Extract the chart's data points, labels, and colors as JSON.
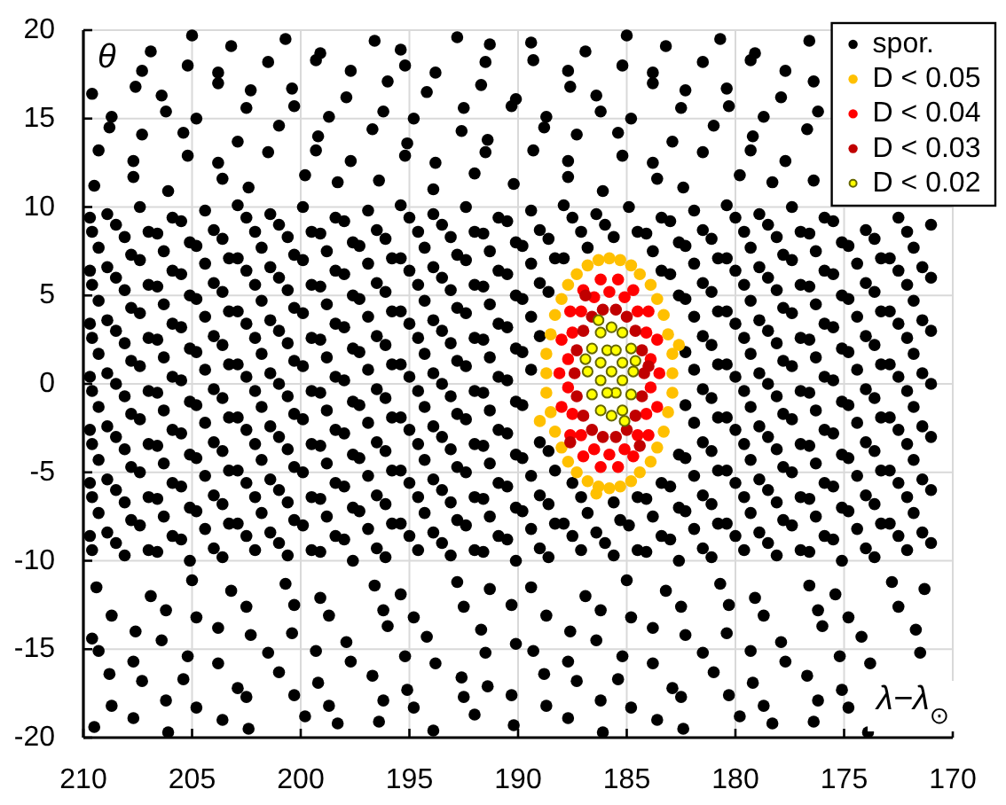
{
  "chart_data": {
    "type": "scatter",
    "xlabel": "λ−λ$_{⊙}$",
    "ylabel": "θ",
    "xlim": [
      210,
      170
    ],
    "ylim": [
      -20,
      20
    ],
    "xticks": [
      210,
      205,
      200,
      195,
      190,
      185,
      180,
      175,
      170
    ],
    "yticks": [
      -20,
      -15,
      -10,
      -5,
      0,
      5,
      10,
      15,
      20
    ],
    "grid": true,
    "legend": "top right",
    "marker": "circle",
    "series": [
      {
        "name": "spor.",
        "color": "#000000",
        "x": [
          176.6,
          179.1,
          180.7,
          183.2,
          185.0,
          186.9,
          189.4,
          191.3,
          192.8,
          195.4,
          196.6,
          199.1,
          200.7,
          203.2,
          205.0,
          206.9,
          176.4,
          177.9,
          180.4,
          182.3,
          183.8,
          186.4,
          187.6,
          190.1,
          191.7,
          194.2,
          196.0,
          197.9,
          200.4,
          202.3,
          203.8,
          206.4,
          207.6,
          209.6,
          176.7,
          179.2,
          181.0,
          182.9,
          185.4,
          187.3,
          188.8,
          191.4,
          192.6,
          195.1,
          196.7,
          199.2,
          201.0,
          202.9,
          205.4,
          207.3,
          208.8,
          176.4,
          178.3,
          179.8,
          182.4,
          183.6,
          186.1,
          187.7,
          190.2,
          192.0,
          193.9,
          196.4,
          198.3,
          199.8,
          202.4,
          203.6,
          206.1,
          207.7,
          209.5,
          171.0,
          172.5,
          174.0,
          175.5,
          177.0,
          178.5,
          180.0,
          181.5,
          183.0,
          184.5,
          186.0,
          187.5,
          189.0,
          190.5,
          192.0,
          193.5,
          195.0,
          196.5,
          198.0,
          199.5,
          201.0,
          202.5,
          204.0,
          205.5,
          207.0,
          208.5,
          209.7,
          171.8,
          173.3,
          174.8,
          176.3,
          177.8,
          179.3,
          180.8,
          182.3,
          183.8,
          186.8,
          188.3,
          189.8,
          191.3,
          192.8,
          194.3,
          195.8,
          197.3,
          198.8,
          200.3,
          201.8,
          203.3,
          204.8,
          206.3,
          207.8,
          209.3,
          171.0,
          172.5,
          174.0,
          175.5,
          177.0,
          178.5,
          180.0,
          181.5,
          183.0,
          189.0,
          190.5,
          192.0,
          193.5,
          195.0,
          196.5,
          198.0,
          199.5,
          201.0,
          202.5,
          204.0,
          205.5,
          207.0,
          208.5,
          209.7,
          171.8,
          173.3,
          174.8,
          176.3,
          177.8,
          179.3,
          180.8,
          182.3,
          189.8,
          191.3,
          192.8,
          194.3,
          195.8,
          197.3,
          198.8,
          200.3,
          201.8,
          203.3,
          204.8,
          206.3,
          207.8,
          209.3,
          171.0,
          172.5,
          174.0,
          175.5,
          177.0,
          178.5,
          180.0,
          181.5,
          189.0,
          190.5,
          192.0,
          193.5,
          195.0,
          196.5,
          198.0,
          199.5,
          201.0,
          202.5,
          204.0,
          205.5,
          207.0,
          208.5,
          209.7,
          171.8,
          173.3,
          174.8,
          176.3,
          177.8,
          179.3,
          180.8,
          182.3,
          189.8,
          191.3,
          192.8,
          194.3,
          195.8,
          197.3,
          198.8,
          200.3,
          201.8,
          203.3,
          204.8,
          206.3,
          207.8,
          209.3,
          171.0,
          172.5,
          174.0,
          175.5,
          177.0,
          178.5,
          180.0,
          181.5,
          190.5,
          192.0,
          193.5,
          195.0,
          196.5,
          198.0,
          199.5,
          201.0,
          202.5,
          204.0,
          205.5,
          207.0,
          208.5,
          209.7,
          171.8,
          173.3,
          174.8,
          176.3,
          177.8,
          179.3,
          180.8,
          182.3,
          189.8,
          191.3,
          192.8,
          194.3,
          195.8,
          197.3,
          198.8,
          200.3,
          201.8,
          203.3,
          204.8,
          206.3,
          207.8,
          209.3,
          171.0,
          172.5,
          174.0,
          175.5,
          177.0,
          178.5,
          180.0,
          181.5,
          189.0,
          190.5,
          192.0,
          193.5,
          195.0,
          196.5,
          198.0,
          199.5,
          201.0,
          202.5,
          204.0,
          205.5,
          207.0,
          208.5,
          209.7,
          171.8,
          173.3,
          174.8,
          176.3,
          177.8,
          179.3,
          180.8,
          182.3,
          188.3,
          189.8,
          191.3,
          192.8,
          194.3,
          195.8,
          197.3,
          198.8,
          200.3,
          201.8,
          203.3,
          204.8,
          206.3,
          207.8,
          209.3,
          171.0,
          172.5,
          174.0,
          175.5,
          177.0,
          178.5,
          180.0,
          181.5,
          183.0,
          184.5,
          187.5,
          189.0,
          190.5,
          192.0,
          193.5,
          195.0,
          196.5,
          198.0,
          199.5,
          201.0,
          202.5,
          204.0,
          205.5,
          207.0,
          208.5,
          209.7,
          171.8,
          173.3,
          174.8,
          176.3,
          177.8,
          179.3,
          180.8,
          182.3,
          183.8,
          185.3,
          186.8,
          188.3,
          189.8,
          191.3,
          192.8,
          194.3,
          195.8,
          197.3,
          198.8,
          200.3,
          201.8,
          203.3,
          204.8,
          206.3,
          207.8,
          209.3,
          171.0,
          172.5,
          174.0,
          175.5,
          177.0,
          178.5,
          180.0,
          181.5,
          183.0,
          184.5,
          186.0,
          187.5,
          189.0,
          190.5,
          192.0,
          193.5,
          195.0,
          196.5,
          198.0,
          199.5,
          201.0,
          202.5,
          204.0,
          205.5,
          207.0,
          208.5,
          209.7,
          171.3,
          172.8,
          175.4,
          176.6,
          179.1,
          180.7,
          183.2,
          185.0,
          186.9,
          189.4,
          191.3,
          192.8,
          195.4,
          196.6,
          199.1,
          200.7,
          203.2,
          205.0,
          206.9,
          209.4,
          171.7,
          174.2,
          176.0,
          177.9,
          180.4,
          182.3,
          183.8,
          186.4,
          187.6,
          190.1,
          191.7,
          194.2,
          196.0,
          197.9,
          200.4,
          202.3,
          203.8,
          206.4,
          207.6,
          209.6,
          175.1,
          176.7,
          179.2,
          181.0,
          182.9,
          185.4,
          187.3,
          188.8,
          191.4,
          192.6,
          195.1,
          196.7,
          199.2,
          201.0,
          202.9,
          205.4,
          207.3,
          208.8,
          173.9,
          176.4,
          178.3,
          179.8,
          182.4,
          183.6,
          186.1,
          187.7,
          190.2,
          192.0,
          193.9,
          196.4,
          198.3,
          199.8,
          202.4,
          203.6,
          206.1,
          207.7,
          209.5,
          177.7,
          179.3,
          181.5,
          183.8,
          185.2,
          187.7,
          189.3,
          191.5,
          193.8,
          195.2,
          197.7,
          199.3,
          201.5,
          203.8,
          205.2,
          207.3,
          176.2,
          178.7,
          180.3,
          182.5,
          184.8,
          186.2,
          188.7,
          190.3,
          192.5,
          194.8,
          196.2,
          198.7,
          200.3,
          202.5,
          204.8,
          206.2,
          208.7,
          177.7,
          179.3,
          181.5,
          183.8,
          185.2,
          187.7,
          189.3,
          191.5,
          193.8,
          195.2,
          197.7,
          199.3,
          201.5,
          203.8,
          205.2,
          207.7,
          209.3,
          175.9,
          177.4,
          178.9,
          180.4,
          181.9,
          183.4,
          184.9,
          186.4,
          187.9,
          189.4,
          190.9,
          192.4,
          193.9,
          195.4,
          196.9,
          198.4,
          199.9,
          201.4,
          202.9,
          204.4,
          205.9,
          207.4,
          208.9,
          172.1,
          173.6,
          175.1,
          176.6,
          178.1,
          179.6,
          181.1,
          182.6,
          184.1,
          185.6,
          187.1,
          188.6,
          190.1,
          191.6,
          193.1,
          194.6,
          196.1,
          197.6,
          199.1,
          200.6,
          202.1,
          203.6,
          205.1,
          206.6,
          208.1,
          209.6,
          171.4,
          172.9,
          174.4,
          175.9,
          177.4,
          178.9,
          180.4,
          181.9,
          183.4,
          187.9,
          189.4,
          190.9,
          192.4,
          193.9,
          195.4,
          196.9,
          198.4,
          199.9,
          201.4,
          202.9,
          204.4,
          205.9,
          207.4,
          208.9,
          172.1,
          173.6,
          175.1,
          176.6,
          178.1,
          179.6,
          181.1,
          182.6,
          188.6,
          190.1,
          191.6,
          193.1,
          194.6,
          196.1,
          197.6,
          199.1,
          200.6,
          202.1,
          203.6,
          205.1,
          206.6,
          208.1,
          209.6,
          171.4,
          172.9,
          174.4,
          175.9,
          177.4,
          178.9,
          180.4,
          181.9,
          189.4,
          190.9,
          192.4,
          193.9,
          195.4,
          196.9,
          198.4,
          199.9,
          201.4,
          202.9,
          204.4,
          205.9,
          207.4,
          208.9,
          172.1,
          173.6,
          175.1,
          176.6,
          178.1,
          179.6,
          181.1,
          190.1,
          191.6,
          193.1,
          194.6,
          196.1,
          197.6,
          199.1,
          200.6,
          202.1,
          203.6,
          205.1,
          206.6,
          208.1,
          209.6,
          171.4,
          172.9,
          174.4,
          175.9,
          177.4,
          178.9,
          180.4,
          181.9,
          189.4,
          190.9,
          192.4,
          193.9,
          195.4,
          196.9,
          198.4,
          199.9,
          201.4,
          202.9,
          204.4,
          205.9,
          207.4,
          208.9,
          172.1,
          173.6,
          175.1,
          176.6,
          178.1,
          179.6,
          181.1,
          190.1,
          191.6,
          193.1,
          194.6,
          196.1,
          197.6,
          199.1,
          200.6,
          202.1,
          203.6,
          205.1,
          206.6,
          208.1,
          209.6,
          171.4,
          172.9,
          174.4,
          175.9,
          177.4,
          178.9,
          180.4,
          181.9,
          190.9,
          192.4,
          193.9,
          195.4,
          196.9,
          198.4,
          199.9,
          201.4,
          202.9,
          204.4,
          205.9,
          207.4,
          208.9,
          172.1,
          173.6,
          175.1,
          176.6,
          178.1,
          179.6,
          181.1,
          182.6,
          188.6,
          190.1,
          191.6,
          193.1,
          194.6,
          196.1,
          197.6,
          199.1,
          200.6,
          202.1,
          203.6,
          205.1,
          206.6,
          208.1,
          209.6,
          171.4,
          172.9,
          174.4,
          175.9,
          177.4,
          178.9,
          180.4,
          181.9,
          183.4,
          189.4,
          190.9,
          192.4,
          193.9,
          195.4,
          196.9,
          198.4,
          199.9,
          201.4,
          202.9,
          204.4,
          205.9,
          207.4,
          208.9,
          172.1,
          173.6,
          175.1,
          176.6,
          178.1,
          179.6,
          181.1,
          182.6,
          184.1,
          185.6,
          187.1,
          188.6,
          190.1,
          191.6,
          193.1,
          194.6,
          196.1,
          197.6,
          199.1,
          200.6,
          202.1,
          203.6,
          205.1,
          206.6,
          208.1,
          209.6,
          171.4,
          172.9,
          174.4,
          175.9,
          177.4,
          178.9,
          180.4,
          181.9,
          183.4,
          184.9,
          186.4,
          187.9,
          189.4,
          190.9,
          192.4,
          193.9,
          195.4,
          196.9,
          198.4,
          199.9,
          201.4,
          202.9,
          204.4,
          205.9,
          207.4,
          208.9,
          172.1,
          173.6,
          175.1,
          176.6,
          178.1,
          179.6,
          181.1,
          182.6,
          184.1,
          185.6,
          187.1,
          188.6,
          190.1,
          191.6,
          193.1,
          194.6,
          196.1,
          197.6,
          199.1,
          200.6,
          202.1,
          203.6,
          205.1,
          206.6,
          208.1,
          209.6,
          172.5,
          174.8,
          176.2,
          178.7,
          180.3,
          182.5,
          184.8,
          186.2,
          188.7,
          190.3,
          192.5,
          194.8,
          196.2,
          198.7,
          200.3,
          202.5,
          204.8,
          206.2,
          208.7,
          171.5,
          173.8,
          175.2,
          177.7,
          179.3,
          181.5,
          183.8,
          185.2,
          187.7,
          189.3,
          191.5,
          193.8,
          195.2,
          197.7,
          199.3,
          201.5,
          203.8,
          205.2,
          207.7,
          209.3,
          174.8,
          176.2,
          178.7,
          180.3,
          182.5,
          184.8,
          186.2,
          188.7,
          190.3,
          192.5,
          194.8,
          196.2,
          198.7,
          200.3,
          202.5,
          204.8,
          206.2,
          208.7
        ],
        "values": [
          19.4,
          18.7,
          19.5,
          19.1,
          19.7,
          18.8,
          19.3,
          19.2,
          19.6,
          18.9,
          19.4,
          18.7,
          19.5,
          19.1,
          19.7,
          18.8,
          17.1,
          16.2,
          16.7,
          16.6,
          17.0,
          16.3,
          16.8,
          16.1,
          16.9,
          16.5,
          17.1,
          16.2,
          16.7,
          16.6,
          17.0,
          16.3,
          16.8,
          16.4,
          14.4,
          14.0,
          14.6,
          13.7,
          14.2,
          14.1,
          14.5,
          13.8,
          14.3,
          13.6,
          14.4,
          14.0,
          14.6,
          13.7,
          14.2,
          14.1,
          14.5,
          11.5,
          11.4,
          11.8,
          11.1,
          11.6,
          10.9,
          11.7,
          11.3,
          11.9,
          11.0,
          11.5,
          11.4,
          11.8,
          11.1,
          11.6,
          10.9,
          11.7,
          11.2,
          9.0,
          9.4,
          8.7,
          9.2,
          8.6,
          9.0,
          9.4,
          8.7,
          9.2,
          8.6,
          9.0,
          9.4,
          8.7,
          9.2,
          8.6,
          9.0,
          9.4,
          8.7,
          9.2,
          8.6,
          9.0,
          9.4,
          8.7,
          9.2,
          8.6,
          9.0,
          9.4,
          7.7,
          7.1,
          7.8,
          7.5,
          7.3,
          7.7,
          7.1,
          7.8,
          7.5,
          7.7,
          7.1,
          7.8,
          7.5,
          7.3,
          7.7,
          7.1,
          7.8,
          7.5,
          7.3,
          7.7,
          7.1,
          7.8,
          7.5,
          7.3,
          7.7,
          6.0,
          6.4,
          5.7,
          6.2,
          5.6,
          6.0,
          6.4,
          5.7,
          6.2,
          5.7,
          6.2,
          5.6,
          6.0,
          6.4,
          5.7,
          6.2,
          5.6,
          6.0,
          6.4,
          5.7,
          6.2,
          5.6,
          6.0,
          6.4,
          4.7,
          4.1,
          4.8,
          4.5,
          4.3,
          4.7,
          4.1,
          4.8,
          4.8,
          4.5,
          4.3,
          4.7,
          4.1,
          4.8,
          4.5,
          4.3,
          4.7,
          4.1,
          4.8,
          4.5,
          4.3,
          4.7,
          3.0,
          3.4,
          2.7,
          3.2,
          2.6,
          3.0,
          3.4,
          2.7,
          2.7,
          3.2,
          2.6,
          3.0,
          3.4,
          2.7,
          3.2,
          2.6,
          3.0,
          3.4,
          2.7,
          3.2,
          2.6,
          3.0,
          3.4,
          1.7,
          1.1,
          1.8,
          1.5,
          1.3,
          1.7,
          1.1,
          1.8,
          1.8,
          1.5,
          1.3,
          1.7,
          1.1,
          1.8,
          1.5,
          1.3,
          1.7,
          1.1,
          1.8,
          1.5,
          1.3,
          1.7,
          0,
          0.4,
          -0.3,
          0.2,
          -0.4,
          0,
          0.4,
          -0.3,
          0.2,
          -0.4,
          0,
          0.4,
          -0.3,
          0.2,
          -0.4,
          0,
          0.4,
          -0.3,
          0.2,
          -0.4,
          0,
          0.4,
          -1.3,
          -1.9,
          -1.2,
          -1.5,
          -1.7,
          -1.3,
          -1.9,
          -1.2,
          -1.2,
          -1.5,
          -1.7,
          -1.3,
          -1.9,
          -1.2,
          -1.5,
          -1.7,
          -1.3,
          -1.9,
          -1.2,
          -1.5,
          -1.7,
          -1.3,
          -3.0,
          -2.6,
          -3.3,
          -2.8,
          -3.4,
          -3.0,
          -2.6,
          -3.3,
          -3.3,
          -2.8,
          -3.4,
          -3.0,
          -2.6,
          -3.3,
          -2.8,
          -3.4,
          -3.0,
          -2.6,
          -3.3,
          -2.8,
          -3.4,
          -3.0,
          -2.6,
          -4.3,
          -4.9,
          -4.2,
          -4.5,
          -4.7,
          -4.3,
          -4.9,
          -4.2,
          -4.9,
          -4.2,
          -4.5,
          -4.7,
          -4.3,
          -4.9,
          -4.2,
          -4.5,
          -4.7,
          -4.3,
          -4.9,
          -4.2,
          -4.5,
          -4.7,
          -4.3,
          -6.0,
          -5.6,
          -6.3,
          -5.8,
          -6.4,
          -6.0,
          -5.6,
          -6.3,
          -5.8,
          -6.4,
          -5.6,
          -6.3,
          -5.8,
          -6.4,
          -6.0,
          -5.6,
          -6.3,
          -5.8,
          -6.4,
          -6.0,
          -5.6,
          -6.3,
          -5.8,
          -6.4,
          -6.0,
          -5.6,
          -7.3,
          -7.9,
          -7.2,
          -7.5,
          -7.7,
          -7.3,
          -7.9,
          -7.2,
          -7.5,
          -7.7,
          -7.3,
          -7.9,
          -7.2,
          -7.5,
          -7.7,
          -7.3,
          -7.9,
          -7.2,
          -7.5,
          -7.7,
          -7.3,
          -7.9,
          -7.2,
          -7.5,
          -7.7,
          -7.3,
          -9.0,
          -8.6,
          -9.3,
          -8.8,
          -9.4,
          -9.0,
          -8.6,
          -9.3,
          -8.8,
          -9.4,
          -9.0,
          -8.6,
          -9.3,
          -8.8,
          -9.4,
          -9.0,
          -8.6,
          -9.3,
          -8.8,
          -9.4,
          -9.0,
          -8.6,
          -9.3,
          -8.8,
          -9.4,
          -9.0,
          -8.6,
          -11.6,
          -11.2,
          -11.9,
          -11.4,
          -12.1,
          -11.3,
          -11.7,
          -11.1,
          -12.0,
          -11.5,
          -11.6,
          -11.2,
          -11.9,
          -11.4,
          -12.1,
          -11.3,
          -11.7,
          -11.1,
          -12.0,
          -11.5,
          -13.9,
          -14.3,
          -13.7,
          -14.6,
          -14.1,
          -14.2,
          -13.8,
          -14.5,
          -14.0,
          -14.7,
          -13.9,
          -14.3,
          -13.7,
          -14.6,
          -14.1,
          -14.2,
          -13.8,
          -14.5,
          -14.0,
          -14.4,
          -17.3,
          -16.5,
          -16.9,
          -16.3,
          -17.2,
          -16.7,
          -16.8,
          -16.4,
          -17.1,
          -16.6,
          -17.3,
          -16.5,
          -16.9,
          -16.3,
          -17.2,
          -16.7,
          -16.8,
          -16.4,
          -19.7,
          -19.1,
          -19.2,
          -18.8,
          -19.5,
          -19.0,
          -19.7,
          -18.9,
          -19.3,
          -18.7,
          -19.6,
          -19.1,
          -19.2,
          -18.8,
          -19.5,
          -19.0,
          -19.7,
          -18.9,
          -19.4,
          17.7,
          18.3,
          18.2,
          17.6,
          18.0,
          17.7,
          18.3,
          18.2,
          17.6,
          18.0,
          17.7,
          18.3,
          18.2,
          17.6,
          18.0,
          17.7,
          15.4,
          15.1,
          15.7,
          15.6,
          15.0,
          15.4,
          15.1,
          15.7,
          15.6,
          15.0,
          15.4,
          15.1,
          15.7,
          15.6,
          15.0,
          15.4,
          15.1,
          12.6,
          13.2,
          13.1,
          12.5,
          12.9,
          12.6,
          13.2,
          13.1,
          12.5,
          12.9,
          12.6,
          13.2,
          13.1,
          12.5,
          12.9,
          12.6,
          13.2,
          9.4,
          10.0,
          9.6,
          10.1,
          9.8,
          9.4,
          10.0,
          9.6,
          10.1,
          9.8,
          9.4,
          10.0,
          9.6,
          10.1,
          9.8,
          9.4,
          10.0,
          9.6,
          10.1,
          9.8,
          9.4,
          10.0,
          9.6,
          8.6,
          8.2,
          8.0,
          8.5,
          8.3,
          8.6,
          8.2,
          8.0,
          8.5,
          8.3,
          8.6,
          8.2,
          8.0,
          8.5,
          8.3,
          8.6,
          8.2,
          8.0,
          8.5,
          8.3,
          8.6,
          8.2,
          8.0,
          8.5,
          8.3,
          8.6,
          6.6,
          7.1,
          6.8,
          6.4,
          7.0,
          6.6,
          7.1,
          6.8,
          6.4,
          7.1,
          6.8,
          6.4,
          7.0,
          6.6,
          7.1,
          6.8,
          6.4,
          7.0,
          6.6,
          7.1,
          6.8,
          6.4,
          7.0,
          6.6,
          5.6,
          5.2,
          5.0,
          5.5,
          5.3,
          5.6,
          5.2,
          5.0,
          5.2,
          5.0,
          5.5,
          5.3,
          5.6,
          5.2,
          5.0,
          5.5,
          5.3,
          5.6,
          5.2,
          5.0,
          5.5,
          5.3,
          5.6,
          3.6,
          4.1,
          3.8,
          3.4,
          4.0,
          3.6,
          4.1,
          3.8,
          3.8,
          3.4,
          4.0,
          3.6,
          4.1,
          3.8,
          3.4,
          4.0,
          3.6,
          4.1,
          3.8,
          3.4,
          4.0,
          3.6,
          2.6,
          2.2,
          2.0,
          2.5,
          2.3,
          2.6,
          2.2,
          2.0,
          2.5,
          2.3,
          2.6,
          2.2,
          2.0,
          2.5,
          2.3,
          2.6,
          2.2,
          2.0,
          2.5,
          2.3,
          2.6,
          0.6,
          1.1,
          0.8,
          0.4,
          1.0,
          0.6,
          1.1,
          0.8,
          0.8,
          0.4,
          1.0,
          0.6,
          1.1,
          0.8,
          0.4,
          1.0,
          0.6,
          1.1,
          0.8,
          0.4,
          1.0,
          0.6,
          -0.4,
          -0.8,
          -1.0,
          -0.5,
          -0.7,
          -0.4,
          -0.8,
          -1.0,
          -0.5,
          -0.7,
          -0.4,
          -0.8,
          -1.0,
          -0.5,
          -0.7,
          -0.4,
          -0.8,
          -1.0,
          -0.5,
          -0.7,
          -0.4,
          -2.4,
          -1.9,
          -2.2,
          -2.6,
          -2.0,
          -2.4,
          -1.9,
          -2.2,
          -2.6,
          -2.0,
          -2.4,
          -1.9,
          -2.2,
          -2.6,
          -2.0,
          -2.4,
          -1.9,
          -2.2,
          -2.6,
          -2.0,
          -2.4,
          -3.4,
          -3.8,
          -4.0,
          -3.5,
          -3.7,
          -3.4,
          -3.8,
          -4.0,
          -3.8,
          -4.0,
          -3.5,
          -3.7,
          -3.4,
          -3.8,
          -4.0,
          -3.5,
          -3.7,
          -3.4,
          -3.8,
          -4.0,
          -3.5,
          -3.7,
          -3.4,
          -5.4,
          -4.9,
          -5.2,
          -5.6,
          -5.0,
          -5.4,
          -4.9,
          -5.2,
          -5.6,
          -5.2,
          -5.6,
          -5.0,
          -5.4,
          -4.9,
          -5.2,
          -5.6,
          -5.0,
          -5.4,
          -4.9,
          -5.2,
          -5.6,
          -5.0,
          -5.4,
          -6.4,
          -6.8,
          -7.0,
          -6.5,
          -6.7,
          -6.4,
          -6.8,
          -7.0,
          -6.5,
          -6.7,
          -6.4,
          -6.8,
          -7.0,
          -6.5,
          -6.7,
          -6.4,
          -6.8,
          -7.0,
          -6.5,
          -6.7,
          -6.4,
          -6.8,
          -7.0,
          -6.5,
          -6.7,
          -6.4,
          -8.4,
          -7.9,
          -8.2,
          -8.6,
          -8.0,
          -8.4,
          -7.9,
          -8.2,
          -8.6,
          -8.0,
          -8.4,
          -7.9,
          -8.2,
          -8.6,
          -8.0,
          -8.4,
          -7.9,
          -8.2,
          -8.6,
          -8.0,
          -8.4,
          -7.9,
          -8.2,
          -8.6,
          -8.0,
          -8.4,
          -9.4,
          -9.8,
          -10.0,
          -9.5,
          -9.7,
          -9.4,
          -9.8,
          -10.0,
          -9.5,
          -9.7,
          -9.4,
          -9.8,
          -10.0,
          -9.5,
          -9.7,
          -9.4,
          -9.8,
          -10.0,
          -9.5,
          -9.7,
          -9.4,
          -9.8,
          -10.0,
          -9.5,
          -9.7,
          -9.4,
          -12.6,
          -13.2,
          -12.8,
          -13.1,
          -12.5,
          -12.6,
          -13.2,
          -12.8,
          -13.1,
          -12.5,
          -12.6,
          -13.2,
          -12.8,
          -13.1,
          -12.5,
          -12.6,
          -13.2,
          -12.8,
          -13.1,
          -15.2,
          -15.8,
          -15.4,
          -15.7,
          -15.1,
          -15.2,
          -15.8,
          -15.4,
          -15.7,
          -15.1,
          -15.2,
          -15.8,
          -15.4,
          -15.7,
          -15.1,
          -15.2,
          -15.8,
          -15.4,
          -15.7,
          -15.1,
          -18.3,
          -17.9,
          -18.2,
          -17.6,
          -17.7,
          -18.3,
          -17.9,
          -18.2,
          -17.6,
          -17.7,
          -18.3,
          -17.9,
          -18.2,
          -17.6,
          -17.7,
          -18.3,
          -17.9,
          -18.2
        ]
      },
      {
        "name": "D < 0.05",
        "color": "#ffc000",
        "x": [
          188.7,
          188.7,
          188.5,
          188.3,
          188.0,
          187.7,
          187.3,
          186.8,
          186.3,
          185.8,
          185.3,
          184.8,
          184.4,
          183.9,
          183.6,
          183.3,
          183.1,
          182.9,
          182.9,
          182.9,
          183.1,
          183.3,
          183.6,
          183.9,
          184.4,
          184.8,
          185.3,
          185.8,
          186.3,
          186.8,
          187.3,
          187.7,
          188.0,
          188.3,
          188.5,
          188.7,
          189.0,
          182.6,
          186.4
        ],
        "values": [
          0.6,
          1.7,
          2.8,
          3.9,
          4.8,
          5.6,
          6.2,
          6.7,
          7.0,
          7.1,
          7.0,
          6.7,
          6.2,
          5.6,
          4.8,
          3.9,
          2.8,
          1.7,
          0.6,
          -0.5,
          -1.6,
          -2.7,
          -3.6,
          -4.4,
          -5.0,
          -5.5,
          -5.8,
          -5.9,
          -5.8,
          -5.5,
          -5.0,
          -4.4,
          -3.6,
          -2.7,
          -1.6,
          -0.5,
          -2.1,
          2.2,
          -6.2
        ]
      },
      {
        "name": "D < 0.04",
        "color": "#ff0000",
        "x": [
          188.1,
          188.0,
          187.6,
          187.0,
          186.2,
          185.4,
          184.7,
          184.0,
          183.6,
          183.5,
          183.6,
          184.0,
          184.7,
          185.4,
          186.2,
          187.0,
          187.6,
          188.0,
          187.7,
          187.5,
          187.1,
          186.5,
          185.8,
          185.1,
          184.5,
          184.1,
          183.9,
          183.9,
          184.1,
          184.5,
          185.1,
          185.8,
          186.5,
          187.1,
          187.5,
          187.7
        ],
        "values": [
          0.6,
          2.5,
          4.1,
          5.3,
          5.9,
          5.9,
          5.3,
          4.1,
          2.5,
          0.6,
          -1.3,
          -2.9,
          -4.1,
          -4.7,
          -4.7,
          -4.1,
          -2.9,
          -1.3,
          1.4,
          2.9,
          4.1,
          4.9,
          5.2,
          4.9,
          4.1,
          2.9,
          1.4,
          -0.2,
          -1.7,
          -2.9,
          -3.7,
          -4.0,
          -3.7,
          -2.9,
          -1.7,
          -0.2
        ]
      },
      {
        "name": "D < 0.03",
        "color": "#c00000",
        "x": [
          187.4,
          187.3,
          187.0,
          186.6,
          186.1,
          185.5,
          185.0,
          184.6,
          184.3,
          184.2,
          184.3,
          184.6,
          185.0,
          185.5,
          186.1,
          186.6,
          187.0,
          187.3,
          186.9,
          184.4,
          187.6,
          184.0
        ],
        "values": [
          0.6,
          1.9,
          3.0,
          3.8,
          4.2,
          4.2,
          3.8,
          3.0,
          1.9,
          0.6,
          -0.7,
          -1.8,
          -2.6,
          -3.0,
          -3.0,
          -2.6,
          -1.8,
          -0.7,
          5.0,
          -3.5,
          -3.3,
          1.0
        ]
      },
      {
        "name": "D < 0.02",
        "color": "#ffff00",
        "x": [
          186.8,
          186.6,
          186.2,
          185.7,
          185.2,
          184.8,
          184.7,
          184.8,
          185.2,
          185.7,
          186.2,
          186.6,
          186.2,
          185.9,
          185.5,
          185.2,
          185.2,
          185.5,
          185.9,
          186.2,
          185.7,
          186.3,
          185.1,
          186.9,
          184.6
        ],
        "values": [
          0.7,
          2.0,
          2.9,
          3.2,
          2.9,
          2.0,
          0.7,
          -0.6,
          -1.5,
          -1.8,
          -1.5,
          -0.6,
          1.2,
          1.9,
          1.9,
          1.2,
          0.2,
          -0.5,
          -0.5,
          0.2,
          0.7,
          3.6,
          -2.1,
          1.4,
          1.3
        ]
      }
    ]
  }
}
